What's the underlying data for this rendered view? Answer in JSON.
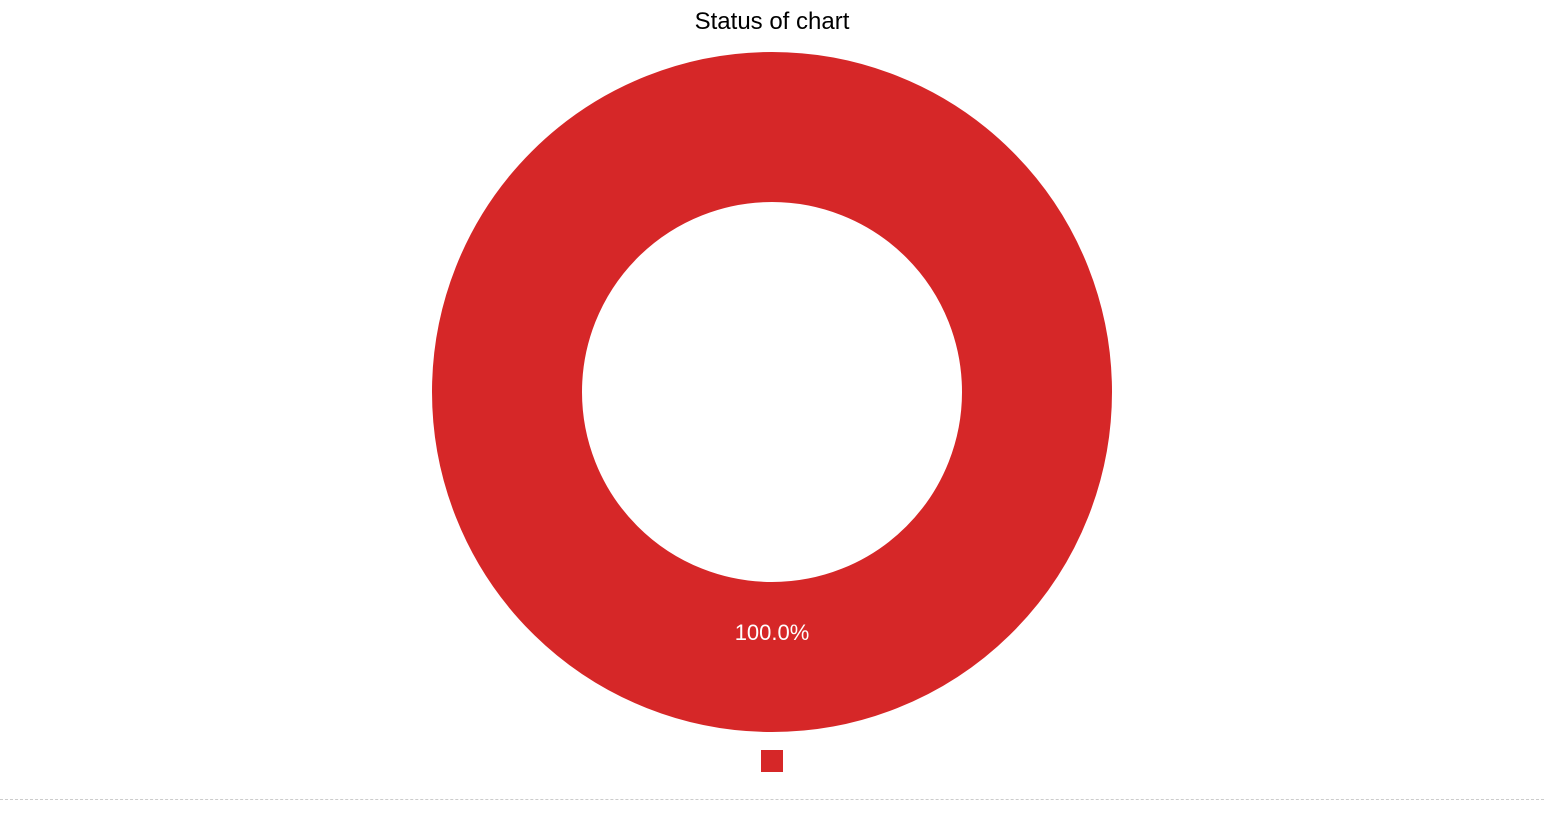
{
  "chart": {
    "type": "donut",
    "title": "Status of chart",
    "title_fontsize": 24,
    "title_color": "#000000",
    "background_color": "#ffffff",
    "outer_radius": 340,
    "inner_radius": 190,
    "slices": [
      {
        "value": 100.0,
        "label": "100.0%",
        "color": "#d62728",
        "label_color": "#ffffff",
        "label_fontsize": 22
      }
    ],
    "legend": {
      "items": [
        {
          "color": "#d62728",
          "swatch_size": 22
        }
      ]
    },
    "divider_color": "#cccccc"
  }
}
